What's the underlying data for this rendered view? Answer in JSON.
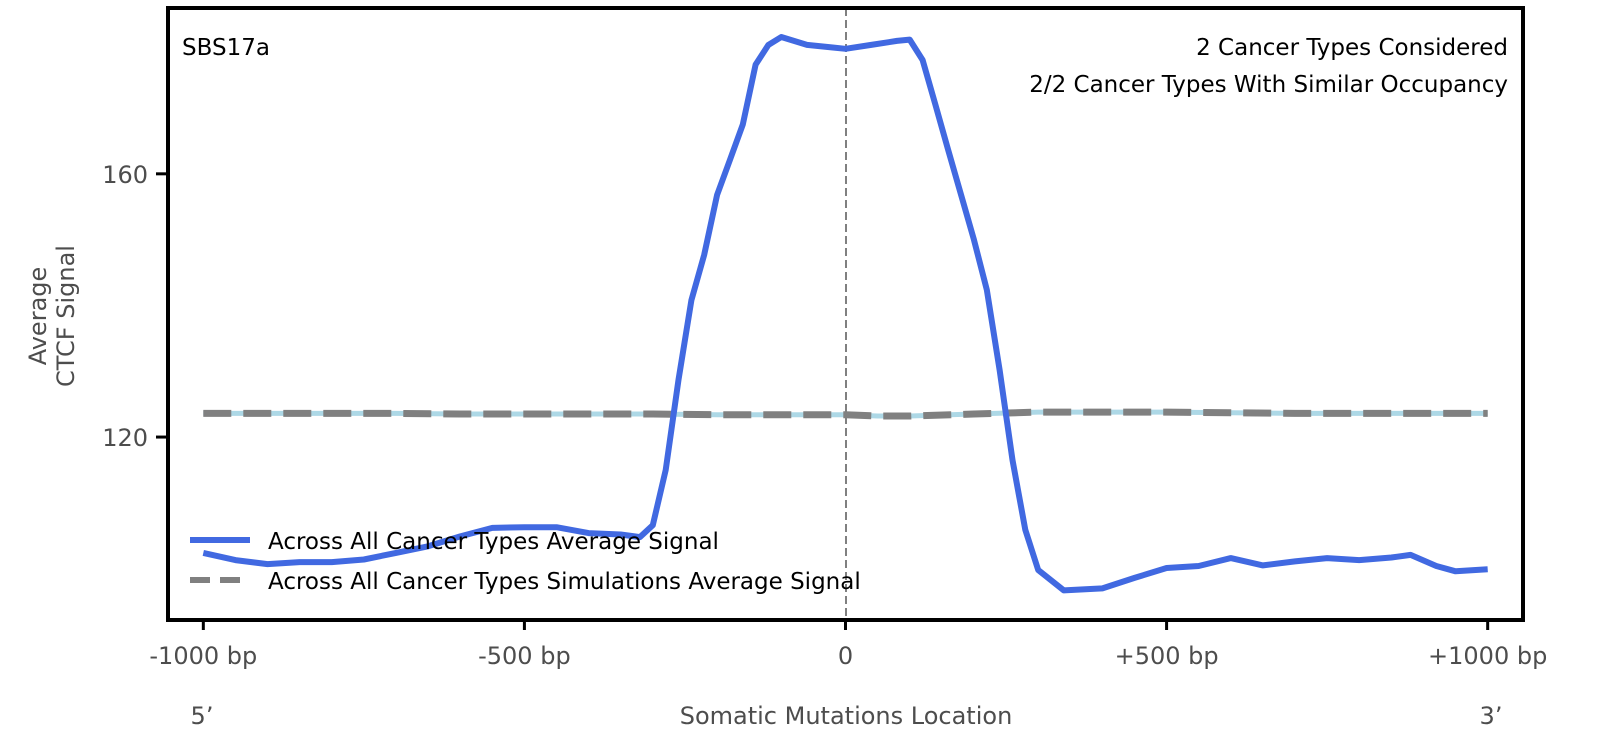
{
  "chart_data": {
    "type": "line",
    "panel_label": "SBS17a",
    "annotations": [
      "2 Cancer Types Considered",
      "2/2 Cancer Types With Similar Occupancy"
    ],
    "xlabel": "Somatic Mutations Location",
    "ylabel_lines": [
      "Average",
      "CTCF Signal"
    ],
    "x_end_labels": {
      "left": "5’",
      "right": "3’"
    },
    "xlim": [
      -1055,
      1055
    ],
    "ylim": [
      92.2,
      185.2
    ],
    "xticks": [
      {
        "value": -1000,
        "label": "-1000 bp"
      },
      {
        "value": -500,
        "label": "-500 bp"
      },
      {
        "value": 0,
        "label": "0"
      },
      {
        "value": 500,
        "label": "+500 bp"
      },
      {
        "value": 1000,
        "label": "+1000 bp"
      }
    ],
    "yticks": [
      {
        "value": 120,
        "label": "120"
      },
      {
        "value": 160,
        "label": "160"
      }
    ],
    "vline": 0,
    "legend_position": "bottom-left",
    "series": [
      {
        "name": "Across All Cancer Types Average Signal",
        "color": "#4169e1",
        "style": "solid",
        "x": [
          -1000,
          -950,
          -900,
          -850,
          -800,
          -750,
          -700,
          -650,
          -600,
          -550,
          -500,
          -450,
          -400,
          -350,
          -320,
          -300,
          -280,
          -260,
          -240,
          -220,
          -200,
          -180,
          -160,
          -140,
          -120,
          -100,
          -60,
          -20,
          0,
          40,
          80,
          100,
          120,
          140,
          160,
          180,
          200,
          220,
          240,
          260,
          280,
          300,
          340,
          400,
          450,
          500,
          550,
          600,
          650,
          700,
          750,
          800,
          850,
          880,
          920,
          950,
          1000
        ],
        "y": [
          102.4,
          101.3,
          100.7,
          101.0,
          101.0,
          101.4,
          102.4,
          103.4,
          104.9,
          106.2,
          106.3,
          106.3,
          105.4,
          105.2,
          104.8,
          106.6,
          115.0,
          128.7,
          140.8,
          147.7,
          156.8,
          162.1,
          167.5,
          176.6,
          179.6,
          180.8,
          179.6,
          179.2,
          179.0,
          179.6,
          180.2,
          180.4,
          177.3,
          170.5,
          163.6,
          156.8,
          150.0,
          142.4,
          130.2,
          116.5,
          105.9,
          99.8,
          96.7,
          97.0,
          98.6,
          100.1,
          100.4,
          101.6,
          100.5,
          101.1,
          101.6,
          101.3,
          101.7,
          102.1,
          100.4,
          99.6,
          99.9
        ]
      },
      {
        "name": "Across All Cancer Types Simulations Average Signal",
        "color": "#808080",
        "style": "dashed",
        "x": [
          -1000,
          -900,
          -800,
          -700,
          -600,
          -500,
          -400,
          -300,
          -200,
          -100,
          0,
          50,
          100,
          200,
          300,
          400,
          500,
          600,
          700,
          800,
          900,
          1000
        ],
        "y": [
          123.6,
          123.6,
          123.6,
          123.6,
          123.5,
          123.5,
          123.5,
          123.5,
          123.4,
          123.4,
          123.4,
          123.2,
          123.2,
          123.5,
          123.8,
          123.8,
          123.8,
          123.7,
          123.6,
          123.6,
          123.6,
          123.6
        ]
      }
    ],
    "background_series_color": "#add8e6"
  }
}
